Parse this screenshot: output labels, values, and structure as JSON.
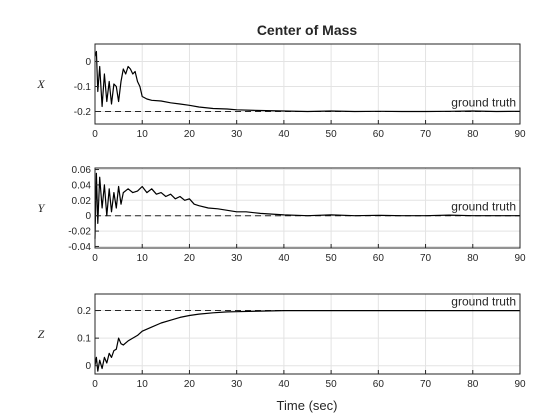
{
  "chart_data": [
    {
      "type": "line",
      "title": "Center of Mass",
      "ylabel": "X",
      "xlabel": "",
      "xlim": [
        0,
        90
      ],
      "ylim": [
        -0.25,
        0.07
      ],
      "xticks": [
        0,
        10,
        20,
        30,
        40,
        50,
        60,
        70,
        80,
        90
      ],
      "yticks": [
        -0.2,
        -0.1,
        0
      ],
      "ytick_labels": [
        "-0.2",
        "-0.1",
        "0"
      ],
      "grid": true,
      "reference": {
        "value": -0.2,
        "label": "ground truth",
        "style": "dashed"
      },
      "series": [
        {
          "x": [
            0,
            0.3,
            0.6,
            1,
            1.5,
            2,
            2.5,
            3,
            3.5,
            4,
            4.5,
            5,
            5.5,
            6,
            6.5,
            7,
            7.5,
            8,
            8.5,
            9,
            9.5,
            10,
            11,
            12,
            14,
            16,
            18,
            20,
            22,
            25,
            28,
            30,
            35,
            40,
            45,
            50,
            55,
            60,
            65,
            70,
            75,
            80,
            85,
            90
          ],
          "y": [
            0.02,
            0.04,
            -0.12,
            -0.02,
            -0.18,
            -0.05,
            -0.16,
            -0.08,
            -0.17,
            -0.09,
            -0.1,
            -0.16,
            -0.08,
            -0.03,
            -0.05,
            -0.02,
            -0.03,
            -0.05,
            -0.04,
            -0.08,
            -0.1,
            -0.14,
            -0.15,
            -0.155,
            -0.158,
            -0.165,
            -0.17,
            -0.175,
            -0.182,
            -0.188,
            -0.19,
            -0.193,
            -0.196,
            -0.198,
            -0.2,
            -0.198,
            -0.2,
            -0.199,
            -0.2,
            -0.2,
            -0.199,
            -0.198,
            -0.2,
            -0.199
          ]
        }
      ]
    },
    {
      "type": "line",
      "title": "",
      "ylabel": "Y",
      "xlabel": "",
      "xlim": [
        0,
        90
      ],
      "ylim": [
        -0.042,
        0.062
      ],
      "xticks": [
        0,
        10,
        20,
        30,
        40,
        50,
        60,
        70,
        80,
        90
      ],
      "yticks": [
        -0.04,
        -0.02,
        0,
        0.02,
        0.04,
        0.06
      ],
      "ytick_labels": [
        "-0.04",
        "-0.02",
        "0",
        "0.02",
        "0.04",
        "0.06"
      ],
      "grid": true,
      "reference": {
        "value": 0,
        "label": "ground truth",
        "style": "dashed"
      },
      "series": [
        {
          "x": [
            0,
            0.3,
            0.6,
            1,
            1.5,
            2,
            2.5,
            3,
            3.5,
            4,
            4.5,
            5,
            5.5,
            6,
            7,
            8,
            9,
            10,
            11,
            12,
            13,
            14,
            15,
            16,
            17,
            18,
            19,
            20,
            21,
            22,
            24,
            26,
            28,
            30,
            32,
            35,
            40,
            45,
            50,
            55,
            60,
            65,
            70,
            75,
            80,
            85,
            90
          ],
          "y": [
            -0.03,
            0.055,
            -0.01,
            0.05,
            0.01,
            0.04,
            0.0,
            0.035,
            0.005,
            0.03,
            0.01,
            0.038,
            0.015,
            0.03,
            0.035,
            0.03,
            0.032,
            0.038,
            0.03,
            0.035,
            0.028,
            0.03,
            0.025,
            0.028,
            0.022,
            0.025,
            0.02,
            0.022,
            0.015,
            0.013,
            0.01,
            0.009,
            0.007,
            0.005,
            0.005,
            0.003,
            0.001,
            0.0,
            0.001,
            0.0,
            0.0005,
            0.0,
            0.0,
            0.0008,
            0.0,
            0.0,
            0.0
          ]
        }
      ]
    },
    {
      "type": "line",
      "title": "",
      "ylabel": "Z",
      "xlabel": "Time (sec)",
      "xlim": [
        0,
        90
      ],
      "ylim": [
        -0.03,
        0.26
      ],
      "xticks": [
        0,
        10,
        20,
        30,
        40,
        50,
        60,
        70,
        80,
        90
      ],
      "yticks": [
        0,
        0.1,
        0.2
      ],
      "ytick_labels": [
        "0",
        "0.1",
        "0.2"
      ],
      "grid": true,
      "reference": {
        "value": 0.2,
        "label": "ground truth",
        "style": "dashed"
      },
      "series": [
        {
          "x": [
            0,
            0.3,
            0.6,
            1,
            1.5,
            2,
            2.5,
            3,
            3.5,
            4,
            4.5,
            5,
            5.5,
            6,
            7,
            8,
            9,
            10,
            12,
            14,
            16,
            18,
            20,
            22,
            25,
            28,
            30,
            35,
            40,
            45,
            50,
            55,
            60,
            70,
            80,
            90
          ],
          "y": [
            0.0,
            0.03,
            -0.02,
            0.02,
            -0.01,
            0.03,
            0.01,
            0.045,
            0.03,
            0.055,
            0.06,
            0.1,
            0.08,
            0.075,
            0.09,
            0.1,
            0.11,
            0.125,
            0.14,
            0.155,
            0.165,
            0.175,
            0.182,
            0.187,
            0.192,
            0.195,
            0.196,
            0.198,
            0.2,
            0.2,
            0.2,
            0.2,
            0.2,
            0.2,
            0.2,
            0.2
          ]
        }
      ]
    }
  ]
}
